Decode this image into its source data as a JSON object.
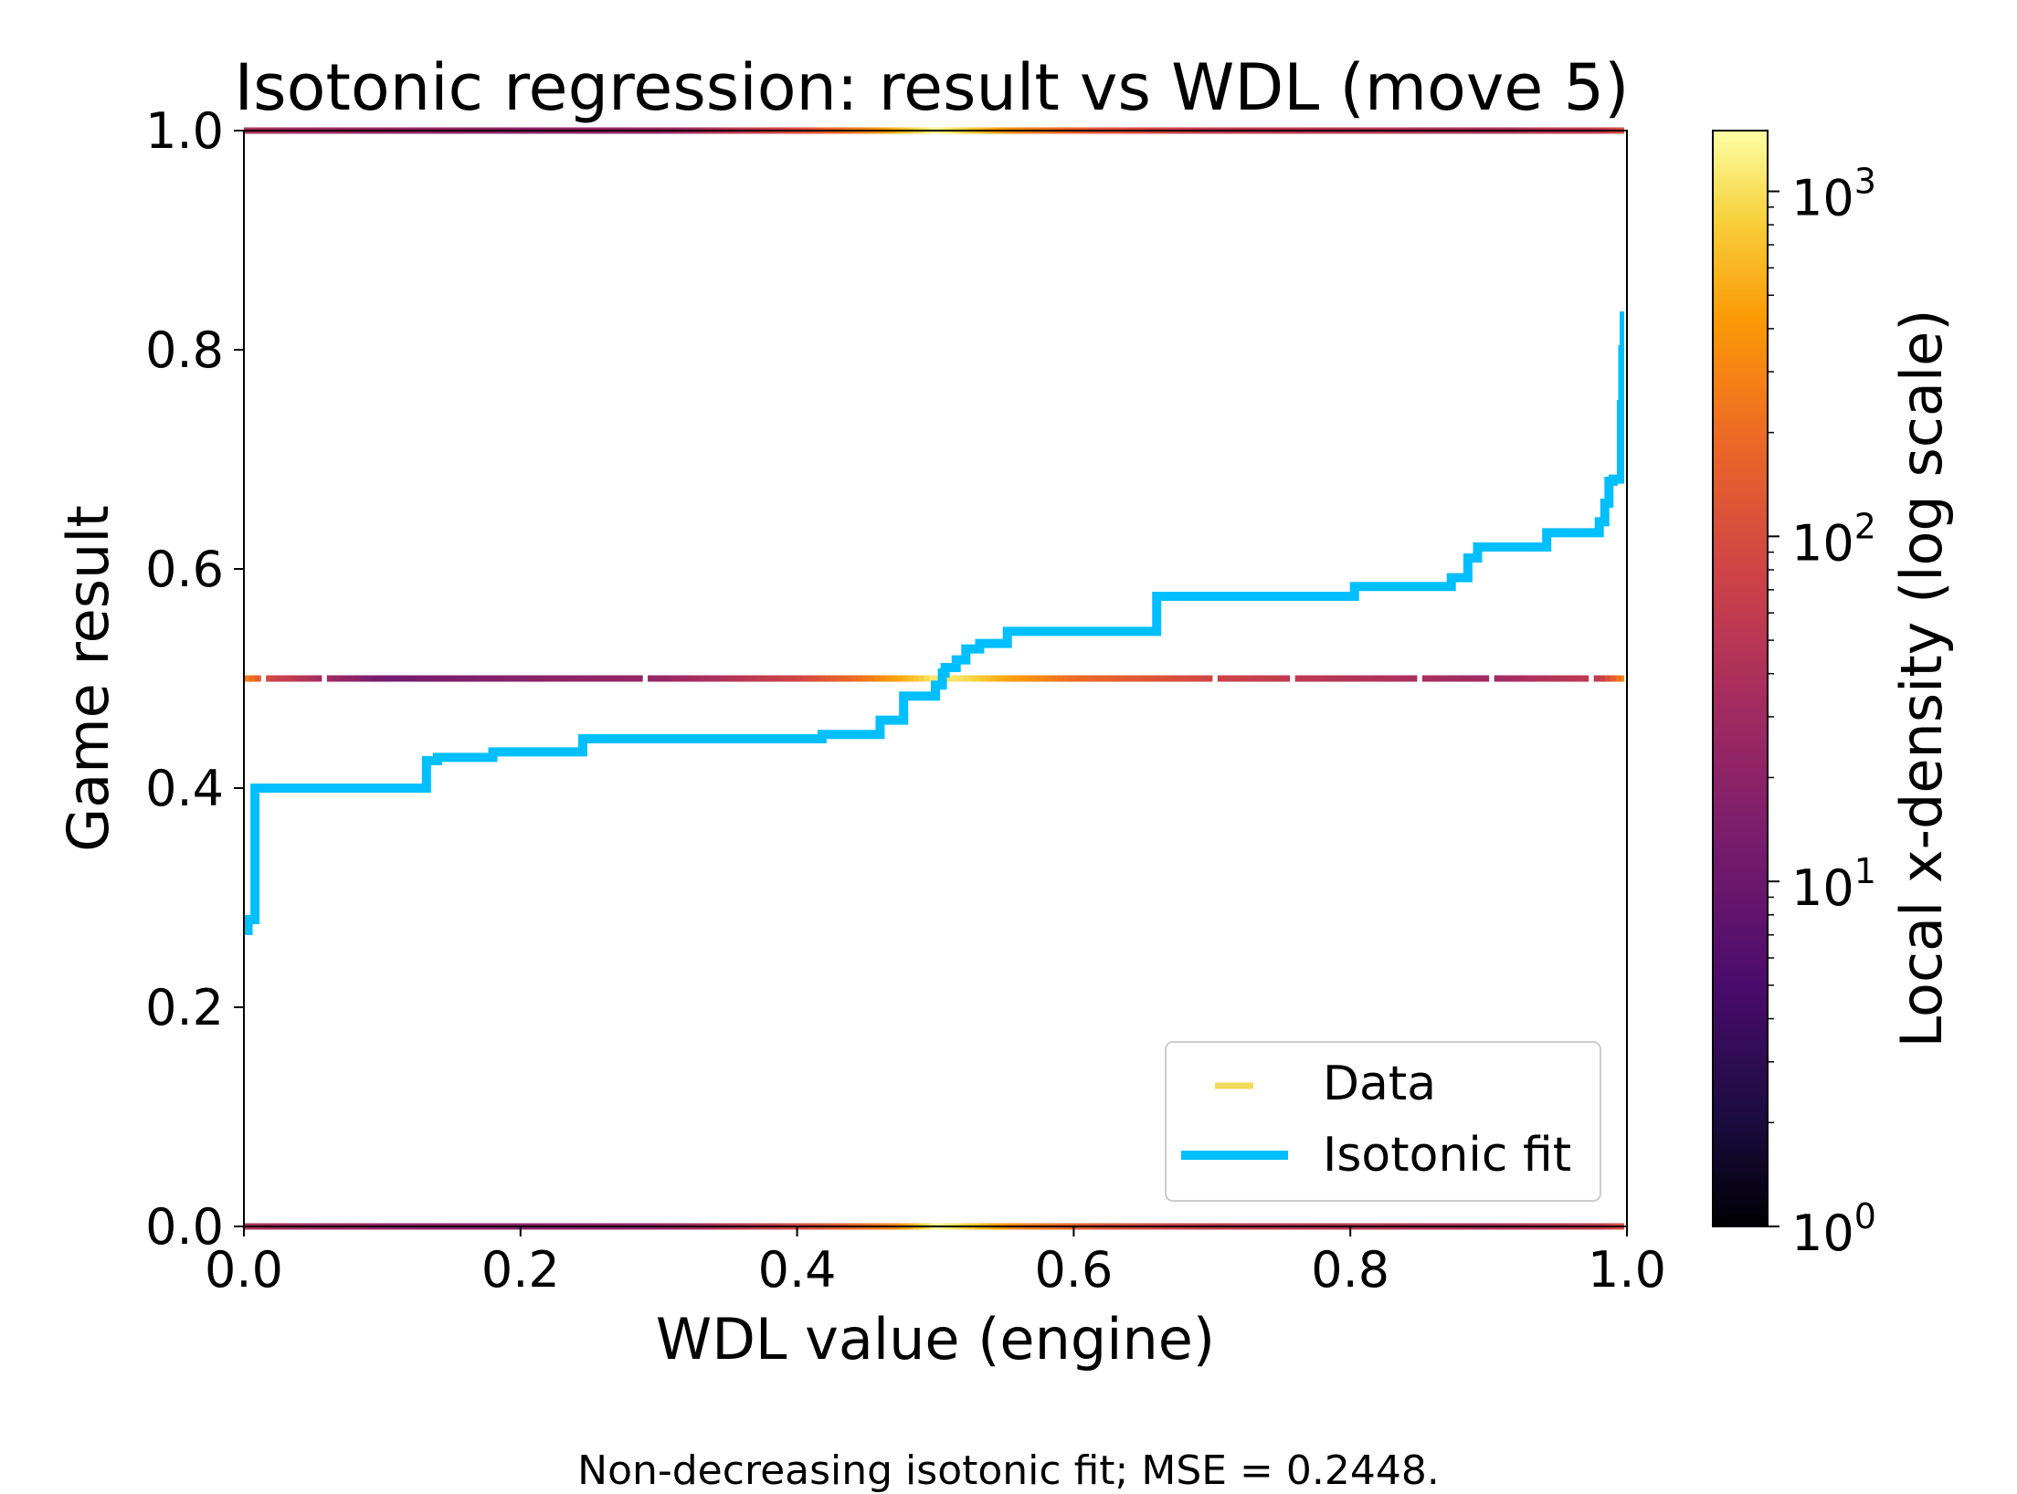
{
  "chart_data": {
    "type": "scatter+line",
    "title": "Isotonic regression: result vs WDL (move 5)",
    "xlabel": "WDL value (engine)",
    "ylabel": "Game result",
    "xlim": [
      0.0,
      1.0
    ],
    "ylim": [
      0.0,
      1.0
    ],
    "xticks": [
      "0.0",
      "0.2",
      "0.4",
      "0.6",
      "0.8",
      "1.0"
    ],
    "yticks": [
      "0.0",
      "0.2",
      "0.4",
      "0.6",
      "0.8",
      "1.0"
    ],
    "grid": false,
    "legend": {
      "placement": "lower-right",
      "entries": [
        {
          "label": "Data",
          "color": "#f0dc5a",
          "style": "dash-marker"
        },
        {
          "label": "Isotonic fit",
          "color": "#00bfff",
          "style": "line"
        }
      ]
    },
    "data_levels": [
      0.0,
      0.5,
      1.0
    ],
    "data_density_profile": {
      "level_0": [
        [
          0.0,
          40
        ],
        [
          0.1,
          25
        ],
        [
          0.2,
          20
        ],
        [
          0.3,
          25
        ],
        [
          0.4,
          90
        ],
        [
          0.47,
          300
        ],
        [
          0.5,
          1400
        ],
        [
          0.52,
          900
        ],
        [
          0.56,
          300
        ],
        [
          0.62,
          120
        ],
        [
          0.7,
          60
        ],
        [
          0.8,
          50
        ],
        [
          0.9,
          40
        ],
        [
          0.98,
          60
        ],
        [
          1.0,
          120
        ]
      ],
      "level_0_5": [
        [
          0.0,
          300
        ],
        [
          0.02,
          80
        ],
        [
          0.1,
          12
        ],
        [
          0.2,
          18
        ],
        [
          0.3,
          25
        ],
        [
          0.4,
          80
        ],
        [
          0.45,
          250
        ],
        [
          0.48,
          600
        ],
        [
          0.5,
          1200
        ],
        [
          0.52,
          1000
        ],
        [
          0.55,
          500
        ],
        [
          0.6,
          200
        ],
        [
          0.7,
          80
        ],
        [
          0.8,
          45
        ],
        [
          0.9,
          30
        ],
        [
          0.98,
          60
        ],
        [
          1.0,
          400
        ]
      ],
      "level_1": [
        [
          0.0,
          40
        ],
        [
          0.1,
          25
        ],
        [
          0.2,
          20
        ],
        [
          0.3,
          25
        ],
        [
          0.4,
          100
        ],
        [
          0.45,
          300
        ],
        [
          0.5,
          1400
        ],
        [
          0.52,
          900
        ],
        [
          0.56,
          300
        ],
        [
          0.62,
          120
        ],
        [
          0.7,
          60
        ],
        [
          0.8,
          50
        ],
        [
          0.9,
          40
        ],
        [
          0.98,
          60
        ],
        [
          1.0,
          120
        ]
      ]
    },
    "isotonic_fit": {
      "x": [
        0.0,
        0.002,
        0.003,
        0.006,
        0.008,
        0.009,
        0.012,
        0.02,
        0.025,
        0.128,
        0.132,
        0.14,
        0.145,
        0.175,
        0.18,
        0.24,
        0.245,
        0.415,
        0.418,
        0.455,
        0.46,
        0.475,
        0.477,
        0.495,
        0.5,
        0.505,
        0.507,
        0.512,
        0.515,
        0.52,
        0.522,
        0.53,
        0.532,
        0.55,
        0.552,
        0.655,
        0.66,
        0.8,
        0.803,
        0.87,
        0.873,
        0.883,
        0.885,
        0.89,
        0.892,
        0.94,
        0.942,
        0.978,
        0.98,
        0.982,
        0.984,
        0.985,
        0.987,
        0.988,
        0.99,
        0.995,
        0.996,
        0.997,
        0.998
      ],
      "y": [
        0.27,
        0.27,
        0.28,
        0.28,
        0.4,
        0.4,
        0.4,
        0.4,
        0.4,
        0.4,
        0.425,
        0.428,
        0.428,
        0.428,
        0.433,
        0.433,
        0.445,
        0.445,
        0.449,
        0.449,
        0.462,
        0.462,
        0.484,
        0.484,
        0.494,
        0.505,
        0.51,
        0.51,
        0.517,
        0.517,
        0.527,
        0.527,
        0.532,
        0.532,
        0.543,
        0.543,
        0.575,
        0.575,
        0.584,
        0.584,
        0.592,
        0.592,
        0.61,
        0.61,
        0.62,
        0.62,
        0.633,
        0.633,
        0.643,
        0.643,
        0.66,
        0.66,
        0.68,
        0.68,
        0.682,
        0.682,
        0.75,
        0.8,
        0.835
      ]
    },
    "colorbar": {
      "label": "Local x-density (log scale)",
      "scale": "log",
      "range": [
        1,
        1500
      ],
      "ticks": [
        {
          "base": "10",
          "exp": "0",
          "value": 1
        },
        {
          "base": "10",
          "exp": "1",
          "value": 10
        },
        {
          "base": "10",
          "exp": "2",
          "value": 100
        },
        {
          "base": "10",
          "exp": "3",
          "value": 1000
        }
      ],
      "colormap": "inferno"
    },
    "caption": "Non-decreasing isotonic fit; MSE = 0.2448."
  }
}
